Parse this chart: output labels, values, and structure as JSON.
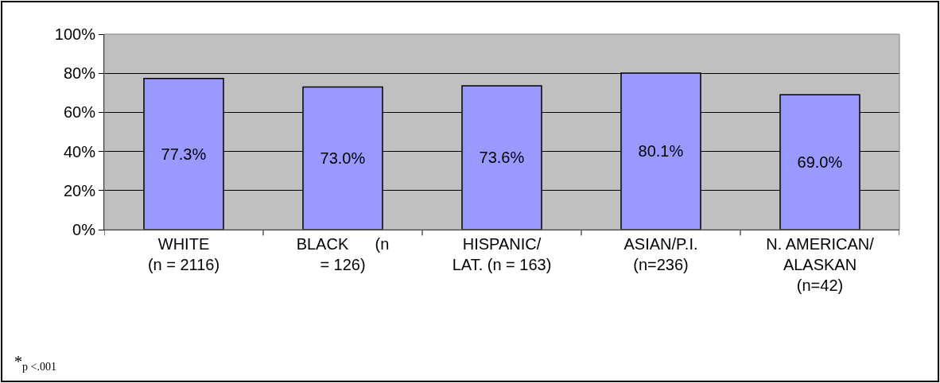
{
  "chart_data": {
    "type": "bar",
    "categories": [
      "WHITE\n(n = 2116)",
      "BLACK      (n\n= 126)",
      "HISPANIC/\nLAT. (n = 163)",
      "ASIAN/P.I.\n(n=236)",
      "N. AMERICAN/\nALASKAN\n(n=42)"
    ],
    "values": [
      77.3,
      73.0,
      73.6,
      80.1,
      69.0
    ],
    "value_labels": [
      "77.3%",
      "73.0%",
      "73.6%",
      "80.1%",
      "69.0%"
    ],
    "color": "#9999ff",
    "ylim": [
      0,
      100
    ],
    "yticks": [
      {
        "value": 0,
        "label": "0%"
      },
      {
        "value": 20,
        "label": "20%"
      },
      {
        "value": 40,
        "label": "40%"
      },
      {
        "value": 60,
        "label": "60%"
      },
      {
        "value": 80,
        "label": "80%"
      },
      {
        "value": 100,
        "label": "100%"
      }
    ],
    "grid": "y",
    "annotations": [
      "*$_{p <.001}$"
    ]
  }
}
